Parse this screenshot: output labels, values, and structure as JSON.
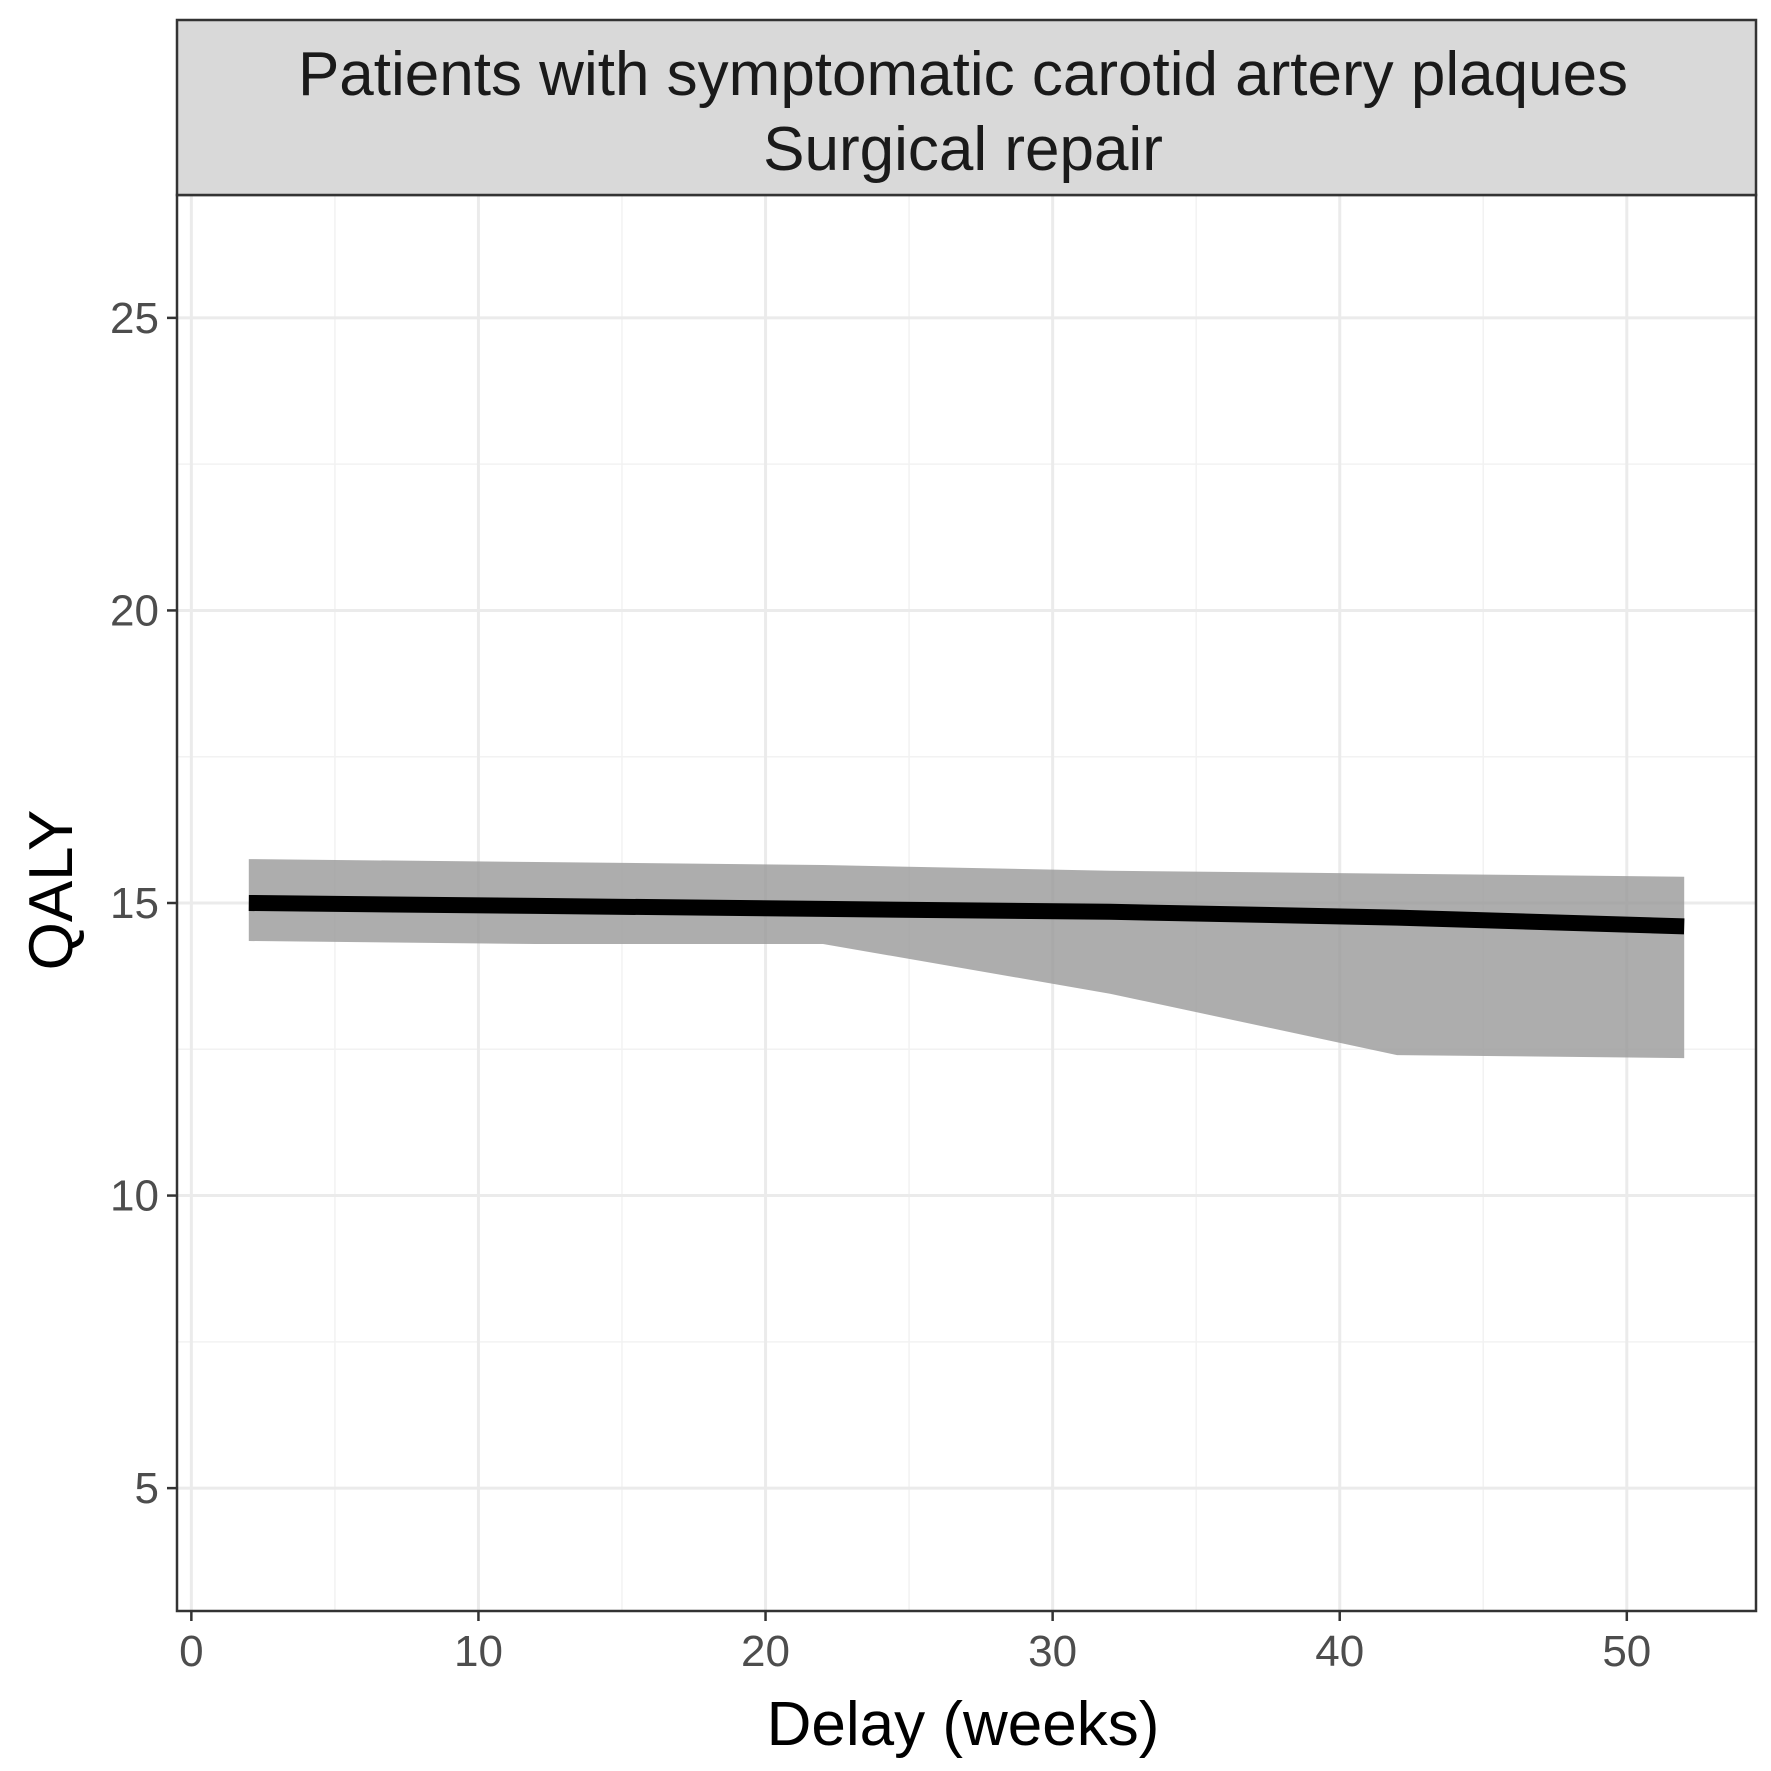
{
  "chart_data": {
    "type": "line",
    "strip_title_lines": [
      "Patients with symptomatic carotid artery plaques",
      "Surgical repair"
    ],
    "xlabel": "Delay (weeks)",
    "ylabel": "QALY",
    "xlim": [
      -0.5,
      54.5
    ],
    "ylim": [
      2.9,
      27.1
    ],
    "x_ticks": [
      0,
      10,
      20,
      30,
      40,
      50
    ],
    "y_ticks": [
      5,
      10,
      15,
      20,
      25
    ],
    "x_tick_labels": [
      "0",
      "10",
      "20",
      "30",
      "40",
      "50"
    ],
    "y_tick_labels": [
      "5",
      "10",
      "15",
      "20",
      "25"
    ],
    "grid": true,
    "legend": "none",
    "series": [
      {
        "x": [
          2,
          12,
          22,
          32,
          42,
          52
        ],
        "values": [
          15.0,
          14.95,
          14.9,
          14.85,
          14.75,
          14.6
        ],
        "lower": [
          14.35,
          14.3,
          14.3,
          13.45,
          12.4,
          12.35
        ],
        "upper": [
          15.75,
          15.7,
          15.65,
          15.55,
          15.5,
          15.45
        ]
      }
    ],
    "colors": {
      "line": "#000000",
      "ribbon": "#999999",
      "strip_fill": "#d9d9d9",
      "grid_major": "#ebebeb",
      "grid_minor": "#f2f2f2"
    }
  }
}
